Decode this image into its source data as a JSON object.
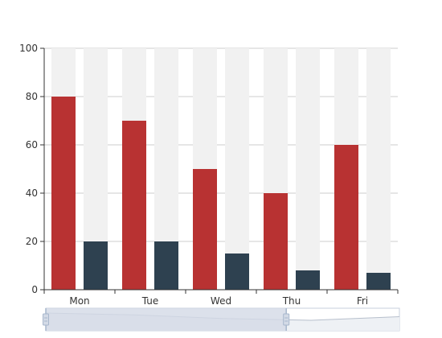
{
  "chart_data": {
    "type": "bar",
    "categories": [
      "Mon",
      "Tue",
      "Wed",
      "Thu",
      "Fri"
    ],
    "series": [
      {
        "values": [
          80,
          70,
          50,
          40,
          60
        ],
        "color": "#b83232"
      },
      {
        "values": [
          20,
          20,
          15,
          8,
          7
        ],
        "color": "#2e4150"
      }
    ],
    "background_bar_max": 100,
    "background_bar_color": "#f1f1f1",
    "ylim": [
      0,
      100
    ],
    "yticks": [
      0,
      20,
      40,
      60,
      80,
      100
    ],
    "grid": true,
    "grid_color": "#cccccc",
    "axis_color": "#333333",
    "data_zoom": {
      "range": [
        0,
        0.68
      ],
      "preview_values": [
        80,
        70,
        50,
        40,
        60
      ],
      "selected_fill": "#d3dae6",
      "border_color": "#c7cfdc",
      "handle_color": "#a7b7cc",
      "preview_line_color": "#b7bfcc"
    }
  }
}
